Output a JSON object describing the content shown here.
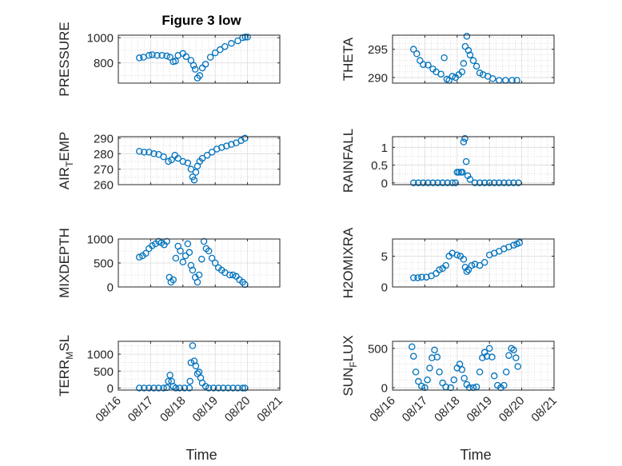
{
  "figure": {
    "title": "Figure 3 low",
    "time_label": "Time",
    "xticks": [
      "08/16",
      "08/17",
      "08/18",
      "08/19",
      "08/20",
      "08/21"
    ]
  },
  "style": {
    "marker_color": "#0072BD",
    "axes_color": "#262626",
    "grid_color": "#c8c8c8"
  },
  "chart_data": [
    {
      "type": "scatter",
      "name": "pressure",
      "ylabel": "PRESSURE",
      "ylim": [
        640,
        1020
      ],
      "yticks": [
        800,
        1000
      ],
      "minor_yticks": [
        700,
        900
      ],
      "x": [
        0.65,
        0.78,
        0.95,
        1.05,
        1.2,
        1.35,
        1.5,
        1.6,
        1.7,
        1.77,
        1.85,
        2.0,
        2.1,
        2.25,
        2.33,
        2.38,
        2.45,
        2.52,
        2.6,
        2.7,
        2.85,
        3.0,
        3.15,
        3.3,
        3.5,
        3.7,
        3.85,
        3.93,
        4.0
      ],
      "values": [
        840,
        845,
        860,
        865,
        860,
        860,
        855,
        845,
        810,
        815,
        860,
        875,
        850,
        820,
        780,
        750,
        680,
        700,
        760,
        790,
        845,
        880,
        905,
        930,
        955,
        975,
        1000,
        1005,
        1005
      ]
    },
    {
      "type": "scatter",
      "name": "theta",
      "ylabel": "THETA",
      "ylim": [
        289,
        297.5
      ],
      "yticks": [
        290,
        295
      ],
      "minor_yticks": [
        291,
        292,
        293,
        294,
        296,
        297
      ],
      "x": [
        0.65,
        0.75,
        0.85,
        0.95,
        1.1,
        1.25,
        1.35,
        1.5,
        1.6,
        1.68,
        1.75,
        1.85,
        1.95,
        2.05,
        2.15,
        2.2,
        2.25,
        2.3,
        2.35,
        2.4,
        2.5,
        2.6,
        2.7,
        2.8,
        2.95,
        3.1,
        3.3,
        3.5,
        3.7,
        3.85
      ],
      "values": [
        295,
        294.2,
        293,
        292.3,
        292.2,
        291.5,
        291,
        290.6,
        293.5,
        289.7,
        289.5,
        290.2,
        290,
        290.5,
        291,
        292.5,
        295.5,
        297.3,
        294.8,
        294,
        293,
        292,
        290.8,
        290.5,
        290.2,
        289.8,
        289.5,
        289.5,
        289.5,
        289.5
      ]
    },
    {
      "type": "scatter",
      "name": "air_temp",
      "ylabel": "AIR_TEMP",
      "ylim": [
        260,
        291
      ],
      "yticks": [
        260,
        270,
        280,
        290
      ],
      "minor_yticks": [
        265,
        275,
        285
      ],
      "x": [
        0.65,
        0.8,
        0.95,
        1.1,
        1.25,
        1.4,
        1.55,
        1.65,
        1.75,
        1.85,
        2.0,
        2.15,
        2.25,
        2.3,
        2.35,
        2.4,
        2.45,
        2.52,
        2.6,
        2.75,
        2.9,
        3.05,
        3.2,
        3.35,
        3.5,
        3.65,
        3.8,
        3.92
      ],
      "values": [
        281.5,
        281,
        281,
        280,
        279.5,
        278,
        275,
        276,
        279,
        277,
        275,
        274,
        270,
        265,
        263,
        268,
        272,
        275,
        277,
        279,
        281,
        283,
        284,
        285,
        286,
        287,
        288.5,
        290
      ]
    },
    {
      "type": "scatter",
      "name": "rainfall",
      "ylabel": "RAINFALL",
      "ylim": [
        -0.05,
        1.3
      ],
      "yticks": [
        0,
        0.5,
        1
      ],
      "minor_yticks": [
        0.25,
        0.75
      ],
      "x": [
        0.65,
        0.8,
        0.95,
        1.1,
        1.25,
        1.4,
        1.55,
        1.7,
        1.85,
        1.95,
        2.0,
        2.05,
        2.12,
        2.16,
        2.2,
        2.24,
        2.28,
        2.33,
        2.4,
        2.55,
        2.7,
        2.85,
        3.0,
        3.15,
        3.3,
        3.45,
        3.6,
        3.75,
        3.9
      ],
      "values": [
        0,
        0,
        0,
        0,
        0,
        0,
        0,
        0,
        0,
        0,
        0.3,
        0.3,
        0.3,
        0.3,
        1.15,
        1.25,
        0.6,
        0.2,
        0.1,
        0,
        0,
        0,
        0,
        0,
        0,
        0,
        0,
        0,
        0
      ]
    },
    {
      "type": "scatter",
      "name": "mixdepth",
      "ylabel": "MIXDEPTH",
      "ylim": [
        0,
        1000
      ],
      "yticks": [
        0,
        500,
        1000
      ],
      "minor_yticks": [
        250,
        750
      ],
      "x": [
        0.65,
        0.75,
        0.85,
        0.95,
        1.05,
        1.15,
        1.25,
        1.33,
        1.42,
        1.5,
        1.58,
        1.63,
        1.7,
        1.78,
        1.85,
        1.92,
        2.0,
        2.08,
        2.15,
        2.2,
        2.25,
        2.3,
        2.38,
        2.45,
        2.5,
        2.58,
        2.65,
        2.72,
        2.8,
        2.9,
        3.0,
        3.1,
        3.2,
        3.3,
        3.45,
        3.55,
        3.65,
        3.75,
        3.85,
        3.92
      ],
      "values": [
        620,
        650,
        700,
        800,
        860,
        900,
        950,
        920,
        880,
        950,
        200,
        100,
        150,
        600,
        850,
        750,
        520,
        650,
        900,
        720,
        450,
        350,
        200,
        100,
        250,
        580,
        950,
        800,
        750,
        600,
        500,
        400,
        350,
        300,
        250,
        250,
        220,
        150,
        100,
        50
      ]
    },
    {
      "type": "scatter",
      "name": "h2omixra",
      "ylabel": "H2OMIXRA",
      "ylim": [
        0,
        7.8
      ],
      "yticks": [
        0,
        5
      ],
      "minor_yticks": [
        1,
        2,
        3,
        4,
        6,
        7
      ],
      "x": [
        0.65,
        0.78,
        0.9,
        1.05,
        1.2,
        1.35,
        1.45,
        1.55,
        1.65,
        1.75,
        1.85,
        2.0,
        2.1,
        2.2,
        2.25,
        2.3,
        2.35,
        2.45,
        2.55,
        2.7,
        2.85,
        3.0,
        3.15,
        3.3,
        3.45,
        3.6,
        3.75,
        3.85,
        3.93
      ],
      "values": [
        1.5,
        1.5,
        1.6,
        1.6,
        1.8,
        2.2,
        2.8,
        3.0,
        3.5,
        5.0,
        5.5,
        5.2,
        5.0,
        4.5,
        3.2,
        2.5,
        2.8,
        3.5,
        3.7,
        3.5,
        4.0,
        5.2,
        5.5,
        5.8,
        6.2,
        6.5,
        6.8,
        7.0,
        7.2
      ]
    },
    {
      "type": "scatter",
      "name": "terr_msl",
      "ylabel": "TERR_MSL",
      "ylim": [
        -60,
        1380
      ],
      "yticks": [
        0,
        500,
        1000
      ],
      "minor_yticks": [
        250,
        750,
        1250
      ],
      "x": [
        0.65,
        0.8,
        0.95,
        1.1,
        1.25,
        1.4,
        1.5,
        1.55,
        1.6,
        1.65,
        1.7,
        1.78,
        1.9,
        2.05,
        2.2,
        2.22,
        2.25,
        2.3,
        2.35,
        2.4,
        2.45,
        2.5,
        2.55,
        2.6,
        2.7,
        2.8,
        2.95,
        3.1,
        3.25,
        3.4,
        3.55,
        3.7,
        3.85,
        3.92
      ],
      "values": [
        0,
        0,
        0,
        0,
        0,
        0,
        10,
        200,
        380,
        200,
        50,
        0,
        0,
        0,
        0,
        200,
        750,
        1250,
        800,
        650,
        420,
        470,
        300,
        150,
        50,
        0,
        0,
        0,
        0,
        0,
        0,
        0,
        0,
        0
      ]
    },
    {
      "type": "scatter",
      "name": "sun_flux",
      "ylabel": "SUN_FLUX",
      "ylim": [
        -30,
        590
      ],
      "yticks": [
        0,
        500
      ],
      "minor_yticks": [
        100,
        200,
        300,
        400
      ],
      "x": [
        0.6,
        0.65,
        0.72,
        0.8,
        0.9,
        1.0,
        1.08,
        1.15,
        1.22,
        1.3,
        1.38,
        1.45,
        1.55,
        1.65,
        1.8,
        1.9,
        2.0,
        2.08,
        2.15,
        2.22,
        2.3,
        2.38,
        2.5,
        2.6,
        2.7,
        2.78,
        2.85,
        2.92,
        3.0,
        3.08,
        3.15,
        3.25,
        3.35,
        3.45,
        3.52,
        3.6,
        3.68,
        3.75,
        3.82,
        3.88
      ],
      "values": [
        520,
        400,
        200,
        80,
        20,
        0,
        100,
        250,
        380,
        480,
        390,
        200,
        60,
        10,
        0,
        100,
        250,
        300,
        230,
        120,
        40,
        0,
        0,
        10,
        200,
        380,
        450,
        400,
        500,
        390,
        150,
        30,
        0,
        30,
        200,
        410,
        500,
        480,
        380,
        270
      ]
    }
  ],
  "panel_ylabels": [
    {
      "main": "PRESSURE",
      "sub": "",
      "tail": ""
    },
    {
      "main": "THETA",
      "sub": "",
      "tail": ""
    },
    {
      "main": "AIR",
      "sub": "T",
      "tail": "EMP"
    },
    {
      "main": "RAINFALL",
      "sub": "",
      "tail": ""
    },
    {
      "main": "MIXDEPTH",
      "sub": "",
      "tail": ""
    },
    {
      "main": "H2OMIXRA",
      "sub": "",
      "tail": ""
    },
    {
      "main": "TERR",
      "sub": "M",
      "tail": "SL"
    },
    {
      "main": "SUN",
      "sub": "F",
      "tail": "LUX"
    }
  ],
  "tick_labels": [
    [
      "800",
      "1000"
    ],
    [
      "290",
      "295"
    ],
    [
      "260",
      "270",
      "280",
      "290"
    ],
    [
      "0",
      "0.5",
      "1"
    ],
    [
      "0",
      "500",
      "1000"
    ],
    [
      "0",
      "5"
    ],
    [
      "0",
      "500",
      "1000"
    ],
    [
      "0",
      "500"
    ]
  ]
}
